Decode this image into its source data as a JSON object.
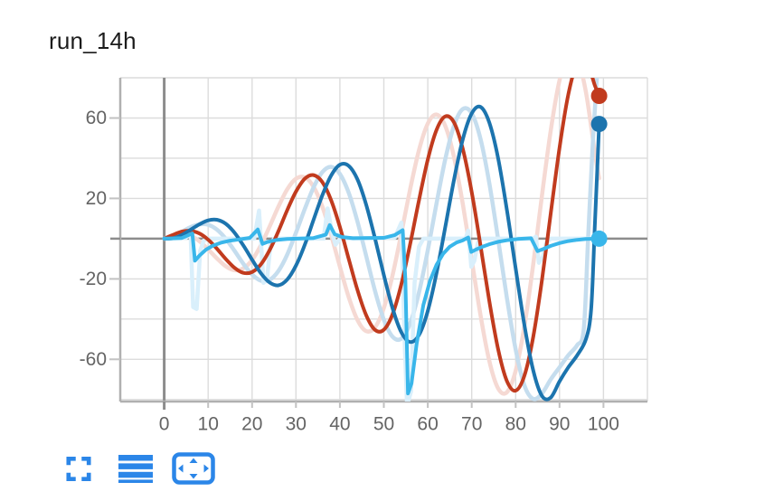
{
  "title": "run_14h",
  "toolbar": {
    "color": "#2b86e8",
    "buttons": [
      {
        "name": "fullscreen",
        "icon": "fullscreen-icon"
      },
      {
        "name": "legend",
        "icon": "legend-lines-icon"
      },
      {
        "name": "pan",
        "icon": "pan-arrows-icon"
      }
    ]
  },
  "chart_data": {
    "type": "line",
    "title": "run_14h",
    "xlabel": "",
    "ylabel": "",
    "x_range": [
      -10,
      110
    ],
    "y_range": [
      -81,
      80
    ],
    "x_ticks": [
      0,
      10,
      20,
      30,
      40,
      50,
      60,
      70,
      80,
      90,
      100
    ],
    "y_ticks": [
      60,
      20,
      -20,
      -60
    ],
    "x_grid_step": 10,
    "y_grid_step": 20,
    "grid": true,
    "legend": "none",
    "axis_colors": {
      "grid": "#dcdcdc",
      "boundary": "#b0b0b0",
      "zero_line": "#8c8c8c",
      "tick": "#c2c2c2",
      "tick_label": "#646464"
    },
    "end_dot_radius": 9,
    "series": [
      {
        "name": "red-raw",
        "color": "#f5d9d3",
        "width": 4.5,
        "smooth": true,
        "end_dot": false,
        "points": [
          [
            0,
            0
          ],
          [
            2,
            1.7
          ],
          [
            4,
            2.4
          ],
          [
            6,
            1.5
          ],
          [
            8,
            -1.2
          ],
          [
            10,
            -5.3
          ],
          [
            12,
            -9.8
          ],
          [
            14,
            -13.7
          ],
          [
            16,
            -15.7
          ],
          [
            18,
            -14.8
          ],
          [
            20,
            -10.6
          ],
          [
            22,
            -3.3
          ],
          [
            24,
            6
          ],
          [
            26,
            15.9
          ],
          [
            28,
            24.5
          ],
          [
            30,
            29.8
          ],
          [
            32,
            30.5
          ],
          [
            34,
            25.8
          ],
          [
            36,
            15.9
          ],
          [
            38,
            1.9
          ],
          [
            40,
            -13.9
          ],
          [
            42,
            -29
          ],
          [
            44,
            -40.5
          ],
          [
            46,
            -46
          ],
          [
            48,
            -44.1
          ],
          [
            50,
            -34.5
          ],
          [
            52,
            -18.1
          ],
          [
            54,
            2.7
          ],
          [
            56,
            24.6
          ],
          [
            58,
            44
          ],
          [
            60,
            57.2
          ],
          [
            62,
            61.7
          ],
          [
            64,
            56
          ],
          [
            66,
            40.4
          ],
          [
            68,
            17.1
          ],
          [
            70,
            -10.6
          ],
          [
            72,
            -38
          ],
          [
            74,
            -60.7
          ],
          [
            76,
            -74.4
          ],
          [
            78,
            -76.4
          ],
          [
            80,
            -65.7
          ],
          [
            82,
            -43.4
          ],
          [
            84,
            -12.8
          ],
          [
            86,
            21.5
          ],
          [
            88,
            53.8
          ],
          [
            90,
            78.7
          ],
          [
            92,
            91.5
          ],
          [
            94,
            89.7
          ],
          [
            96,
            72.9
          ],
          [
            98,
            43.2
          ],
          [
            99,
            30
          ]
        ]
      },
      {
        "name": "blue-raw",
        "color": "#c5ddee",
        "width": 4.5,
        "smooth": true,
        "end_dot": false,
        "points": [
          [
            0,
            0
          ],
          [
            2,
            1.2
          ],
          [
            4,
            3.4
          ],
          [
            6,
            5.7
          ],
          [
            8,
            7.1
          ],
          [
            10,
            6.9
          ],
          [
            12,
            4.5
          ],
          [
            14,
            0
          ],
          [
            16,
            -6
          ],
          [
            18,
            -12.4
          ],
          [
            20,
            -17.8
          ],
          [
            22,
            -20.9
          ],
          [
            24,
            -20.5
          ],
          [
            26,
            -16.1
          ],
          [
            28,
            -8
          ],
          [
            30,
            2.9
          ],
          [
            32,
            14.8
          ],
          [
            34,
            25.5
          ],
          [
            36,
            33.1
          ],
          [
            38,
            35.7
          ],
          [
            40,
            32.2
          ],
          [
            42,
            22.9
          ],
          [
            44,
            8.4
          ],
          [
            46,
            -8.8
          ],
          [
            48,
            -26.1
          ],
          [
            50,
            -40.3
          ],
          [
            52,
            -48.8
          ],
          [
            54,
            -49.7
          ],
          [
            56,
            -42.1
          ],
          [
            58,
            -26.7
          ],
          [
            60,
            -5.8
          ],
          [
            62,
            17.6
          ],
          [
            64,
            39.6
          ],
          [
            66,
            56.3
          ],
          [
            68,
            64.5
          ],
          [
            70,
            62.3
          ],
          [
            72,
            49.6
          ],
          [
            74,
            27.7
          ],
          [
            76,
            0
          ],
          [
            78,
            -29.2
          ],
          [
            80,
            -55.1
          ],
          [
            82,
            -73
          ],
          [
            84,
            -79.7
          ],
          [
            86,
            -77
          ],
          [
            88,
            -70
          ],
          [
            90,
            -64
          ],
          [
            92,
            -58
          ],
          [
            94,
            -53
          ],
          [
            95.5,
            -45
          ],
          [
            96.5,
            0
          ],
          [
            97.5,
            45
          ],
          [
            98.5,
            80
          ],
          [
            99,
            88
          ]
        ]
      },
      {
        "name": "cyan-raw",
        "color": "#d9effb",
        "width": 4.5,
        "smooth": false,
        "end_dot": false,
        "points": [
          [
            0,
            0
          ],
          [
            5,
            0.4
          ],
          [
            6,
            3
          ],
          [
            6.6,
            -34
          ],
          [
            7.4,
            -35
          ],
          [
            8.2,
            -6
          ],
          [
            9,
            -1
          ],
          [
            10,
            0
          ],
          [
            20.5,
            0
          ],
          [
            21.6,
            14
          ],
          [
            22.6,
            -22
          ],
          [
            23.4,
            -20
          ],
          [
            24.2,
            -3
          ],
          [
            25,
            0
          ],
          [
            36.3,
            0
          ],
          [
            37.2,
            15
          ],
          [
            38.2,
            3
          ],
          [
            39,
            -3
          ],
          [
            40,
            0
          ],
          [
            52.5,
            0.5
          ],
          [
            54,
            8
          ],
          [
            54.8,
            -55
          ],
          [
            55.3,
            -83
          ],
          [
            56.2,
            -76
          ],
          [
            57,
            -22
          ],
          [
            58,
            -4
          ],
          [
            59,
            0
          ],
          [
            68.6,
            0
          ],
          [
            69.2,
            4
          ],
          [
            69.9,
            -14
          ],
          [
            70.6,
            -11
          ],
          [
            71.4,
            -2
          ],
          [
            72.2,
            0
          ],
          [
            84,
            0
          ],
          [
            84.6,
            1
          ],
          [
            85.3,
            -12
          ],
          [
            86.2,
            -9
          ],
          [
            87,
            -2
          ],
          [
            88,
            0
          ],
          [
            99,
            0
          ]
        ]
      },
      {
        "name": "red-smoothed",
        "color": "#c13b1e",
        "width": 4,
        "smooth": true,
        "end_dot": true,
        "points": [
          [
            0,
            0
          ],
          [
            2,
            1.9
          ],
          [
            4,
            3.5
          ],
          [
            6,
            3.9
          ],
          [
            8,
            2.6
          ],
          [
            10,
            -0.5
          ],
          [
            12,
            -5
          ],
          [
            14,
            -10.1
          ],
          [
            16,
            -14.5
          ],
          [
            18,
            -17
          ],
          [
            20,
            -16.6
          ],
          [
            22,
            -12.8
          ],
          [
            24,
            -5.7
          ],
          [
            26,
            3.7
          ],
          [
            28,
            14.1
          ],
          [
            30,
            23.4
          ],
          [
            32,
            29.8
          ],
          [
            34,
            31.6
          ],
          [
            36,
            28.1
          ],
          [
            38,
            19.1
          ],
          [
            40,
            5.8
          ],
          [
            42,
            -10
          ],
          [
            44,
            -25.6
          ],
          [
            46,
            -38.2
          ],
          [
            48,
            -45.4
          ],
          [
            50,
            -45.3
          ],
          [
            52,
            -37.5
          ],
          [
            54,
            -22.6
          ],
          [
            56,
            -2.7
          ],
          [
            58,
            19.1
          ],
          [
            60,
            39.3
          ],
          [
            62,
            54.1
          ],
          [
            64,
            60.8
          ],
          [
            66,
            57.7
          ],
          [
            68,
            44.5
          ],
          [
            70,
            23.1
          ],
          [
            72,
            -3.4
          ],
          [
            74,
            -30.9
          ],
          [
            76,
            -54.8
          ],
          [
            78,
            -70.7
          ],
          [
            80,
            -75.6
          ],
          [
            82,
            -68.1
          ],
          [
            84,
            -48.9
          ],
          [
            86,
            -20.5
          ],
          [
            88,
            12.6
          ],
          [
            90,
            45.2
          ],
          [
            92,
            71.7
          ],
          [
            94,
            87.5
          ],
          [
            96,
            89.4
          ],
          [
            98,
            76.4
          ],
          [
            99,
            71
          ]
        ]
      },
      {
        "name": "blue-smoothed",
        "color": "#1c74ae",
        "width": 4,
        "smooth": true,
        "end_dot": true,
        "points": [
          [
            0,
            0
          ],
          [
            2,
            0.2
          ],
          [
            4,
            1.8
          ],
          [
            6,
            4.4
          ],
          [
            8,
            7.1
          ],
          [
            10,
            9.1
          ],
          [
            12,
            9.4
          ],
          [
            14,
            7.4
          ],
          [
            16,
            3
          ],
          [
            18,
            -3.3
          ],
          [
            20,
            -10.5
          ],
          [
            22,
            -17.2
          ],
          [
            24,
            -21.8
          ],
          [
            26,
            -23.2
          ],
          [
            28,
            -20.4
          ],
          [
            30,
            -13.4
          ],
          [
            32,
            -3
          ],
          [
            34,
            9.4
          ],
          [
            36,
            21.6
          ],
          [
            38,
            31.4
          ],
          [
            40,
            36.8
          ],
          [
            42,
            36.2
          ],
          [
            44,
            29.4
          ],
          [
            46,
            16.7
          ],
          [
            48,
            0
          ],
          [
            50,
            -18.1
          ],
          [
            52,
            -34.7
          ],
          [
            54,
            -46.6
          ],
          [
            56,
            -51.4
          ],
          [
            58,
            -47.9
          ],
          [
            60,
            -36
          ],
          [
            62,
            -17.1
          ],
          [
            64,
            5.9
          ],
          [
            66,
            29.5
          ],
          [
            68,
            49.5
          ],
          [
            70,
            62.3
          ],
          [
            72,
            65.5
          ],
          [
            74,
            57.8
          ],
          [
            76,
            40.2
          ],
          [
            78,
            14.5
          ],
          [
            80,
            -14.8
          ],
          [
            82,
            -43.1
          ],
          [
            84,
            -65.5
          ],
          [
            86,
            -78.2
          ],
          [
            88,
            -79
          ],
          [
            90,
            -71
          ],
          [
            92,
            -64
          ],
          [
            94,
            -58
          ],
          [
            96,
            -50
          ],
          [
            97.2,
            -35
          ],
          [
            98,
            5
          ],
          [
            98.6,
            35
          ],
          [
            99,
            57
          ]
        ]
      },
      {
        "name": "cyan-smoothed",
        "color": "#39b6ea",
        "width": 4,
        "smooth": false,
        "end_dot": true,
        "points": [
          [
            0,
            0
          ],
          [
            4,
            0.3
          ],
          [
            5.4,
            1.6
          ],
          [
            6.4,
            2.6
          ],
          [
            7,
            -11
          ],
          [
            8,
            -8.5
          ],
          [
            9.5,
            -5.5
          ],
          [
            11,
            -3.6
          ],
          [
            13,
            -2
          ],
          [
            15,
            -1
          ],
          [
            17,
            -0.4
          ],
          [
            19.5,
            0.4
          ],
          [
            21.3,
            4.6
          ],
          [
            22.4,
            -2.6
          ],
          [
            23.6,
            -1.6
          ],
          [
            25.5,
            -0.7
          ],
          [
            28,
            -0.2
          ],
          [
            34,
            0.3
          ],
          [
            36.8,
            2
          ],
          [
            37.7,
            6.8
          ],
          [
            38.8,
            2.2
          ],
          [
            40.5,
            0.8
          ],
          [
            43,
            0.2
          ],
          [
            50,
            0.4
          ],
          [
            52.5,
            1.8
          ],
          [
            54.3,
            4.2
          ],
          [
            54.9,
            -20
          ],
          [
            55.5,
            -77
          ],
          [
            56.3,
            -72
          ],
          [
            57.5,
            -52
          ],
          [
            59,
            -33
          ],
          [
            60.5,
            -21
          ],
          [
            62,
            -13
          ],
          [
            63.5,
            -7.5
          ],
          [
            65,
            -4
          ],
          [
            66.5,
            -2
          ],
          [
            68,
            -0.8
          ],
          [
            69.2,
            0.6
          ],
          [
            69.9,
            -6.6
          ],
          [
            71,
            -5.4
          ],
          [
            72.5,
            -4
          ],
          [
            74,
            -2.8
          ],
          [
            76,
            -1.6
          ],
          [
            78,
            -0.8
          ],
          [
            80.5,
            -0.2
          ],
          [
            83.5,
            0.2
          ],
          [
            85,
            -6.2
          ],
          [
            86.5,
            -5
          ],
          [
            88,
            -3.6
          ],
          [
            90,
            -2.2
          ],
          [
            92,
            -1.2
          ],
          [
            94,
            -0.6
          ],
          [
            96,
            -0.2
          ],
          [
            99,
            0
          ]
        ]
      }
    ]
  }
}
